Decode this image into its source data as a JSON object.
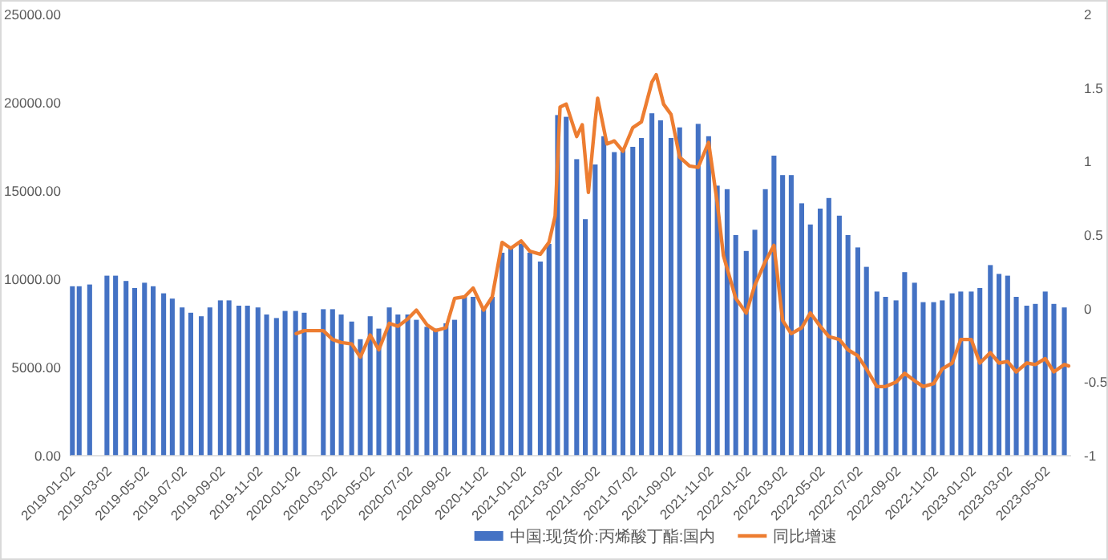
{
  "chart_data": {
    "type": "bar",
    "xlim": [
      "2019-01-01",
      "2023-06-12"
    ],
    "xticks": [
      "2019-01-02",
      "2019-03-02",
      "2019-05-02",
      "2019-07-02",
      "2019-09-02",
      "2019-11-02",
      "2020-01-02",
      "2020-03-02",
      "2020-05-02",
      "2020-07-02",
      "2020-09-02",
      "2020-11-02",
      "2021-01-02",
      "2021-03-02",
      "2021-05-02",
      "2021-07-02",
      "2021-09-02",
      "2021-11-02",
      "2022-01-02",
      "2022-03-02",
      "2022-05-02",
      "2022-07-02",
      "2022-09-02",
      "2022-11-02",
      "2023-01-02",
      "2023-03-02",
      "2023-05-02"
    ],
    "ylim": [
      0,
      25000
    ],
    "yticks": [
      {
        "value": 0,
        "label": "0.00"
      },
      {
        "value": 5000,
        "label": "5000.00"
      },
      {
        "value": 10000,
        "label": "10000.00"
      },
      {
        "value": 15000,
        "label": "15000.00"
      },
      {
        "value": 20000,
        "label": "20000.00"
      },
      {
        "value": 25000,
        "label": "25000.00"
      }
    ],
    "y2lim": [
      -1,
      2
    ],
    "y2ticks": [
      -1,
      -0.5,
      0,
      0.5,
      1,
      1.5,
      2
    ],
    "legend": "bottom",
    "series": [
      {
        "name": "中国:现货价:丙烯酸丁酯:国内",
        "color": "#4472c4",
        "x": [
          "2019-01-04",
          "2019-01-15",
          "2019-02-01",
          "2019-02-15",
          "2019-03-01",
          "2019-03-15",
          "2019-04-01",
          "2019-04-15",
          "2019-05-01",
          "2019-05-15",
          "2019-06-01",
          "2019-06-15",
          "2019-07-01",
          "2019-07-15",
          "2019-08-01",
          "2019-08-15",
          "2019-09-01",
          "2019-09-15",
          "2019-10-01",
          "2019-10-15",
          "2019-11-01",
          "2019-11-15",
          "2019-12-01",
          "2019-12-15",
          "2020-01-01",
          "2020-01-15",
          "2020-02-01",
          "2020-02-15",
          "2020-03-01",
          "2020-03-15",
          "2020-04-01",
          "2020-04-15",
          "2020-05-01",
          "2020-05-15",
          "2020-06-01",
          "2020-06-15",
          "2020-07-01",
          "2020-07-15",
          "2020-08-01",
          "2020-08-15",
          "2020-09-01",
          "2020-09-15",
          "2020-10-01",
          "2020-10-15",
          "2020-11-01",
          "2020-11-15",
          "2020-12-01",
          "2020-12-15",
          "2021-01-01",
          "2021-01-15",
          "2021-02-01",
          "2021-02-15",
          "2021-03-01",
          "2021-03-15",
          "2021-04-01",
          "2021-04-15",
          "2021-05-01",
          "2021-05-15",
          "2021-06-01",
          "2021-06-15",
          "2021-07-01",
          "2021-07-15",
          "2021-08-01",
          "2021-08-15",
          "2021-09-01",
          "2021-09-15",
          "2021-10-01",
          "2021-10-15",
          "2021-11-01",
          "2021-11-15",
          "2021-12-01",
          "2021-12-15",
          "2022-01-01",
          "2022-01-15",
          "2022-02-01",
          "2022-02-15",
          "2022-03-01",
          "2022-03-15",
          "2022-04-01",
          "2022-04-15",
          "2022-05-01",
          "2022-05-15",
          "2022-06-01",
          "2022-06-15",
          "2022-07-01",
          "2022-07-15",
          "2022-08-01",
          "2022-08-15",
          "2022-09-01",
          "2022-09-15",
          "2022-10-01",
          "2022-10-15",
          "2022-11-01",
          "2022-11-15",
          "2022-12-01",
          "2022-12-15",
          "2023-01-01",
          "2023-01-15",
          "2023-02-01",
          "2023-02-15",
          "2023-03-01",
          "2023-03-15",
          "2023-04-01",
          "2023-04-15",
          "2023-05-01",
          "2023-05-15",
          "2023-06-01"
        ],
        "values": [
          9600,
          9600,
          9700,
          null,
          10200,
          10200,
          9900,
          9500,
          9800,
          9600,
          9200,
          8900,
          8400,
          8100,
          7900,
          8400,
          8800,
          8800,
          8500,
          8500,
          8400,
          8000,
          7800,
          8200,
          8200,
          8100,
          null,
          8300,
          8300,
          8000,
          7600,
          6600,
          7900,
          7200,
          8400,
          8000,
          8000,
          7700,
          7300,
          7200,
          7500,
          7700,
          9000,
          9000,
          8300,
          9000,
          11500,
          11800,
          12000,
          11500,
          11000,
          12000,
          19300,
          19200,
          16800,
          13400,
          16500,
          18100,
          17200,
          17400,
          17500,
          18000,
          19400,
          19000,
          18000,
          18600,
          null,
          18800,
          18100,
          15300,
          15100,
          12500,
          11600,
          12800,
          15100,
          17000,
          15900,
          15900,
          14300,
          13100,
          14000,
          14600,
          13600,
          12500,
          11800,
          10700,
          9300,
          9000,
          8800,
          10400,
          9800,
          8700,
          8700,
          8800,
          9200,
          9300,
          9300,
          9500,
          10800,
          10300,
          10200,
          9000,
          8500,
          8600,
          9300,
          8600,
          8400
        ]
      },
      {
        "name": "同比增速",
        "type": "line",
        "axis": "y2",
        "color": "#ed7d31",
        "x": [
          "2020-01-02",
          "2020-01-15",
          "2020-02-15",
          "2020-03-01",
          "2020-03-15",
          "2020-04-01",
          "2020-04-15",
          "2020-05-01",
          "2020-05-15",
          "2020-06-01",
          "2020-06-15",
          "2020-07-01",
          "2020-07-15",
          "2020-08-01",
          "2020-08-15",
          "2020-09-01",
          "2020-09-15",
          "2020-10-01",
          "2020-10-15",
          "2020-11-01",
          "2020-11-15",
          "2020-12-01",
          "2020-12-15",
          "2021-01-01",
          "2021-01-15",
          "2021-02-01",
          "2021-02-15",
          "2021-02-25",
          "2021-03-05",
          "2021-03-15",
          "2021-04-01",
          "2021-04-10",
          "2021-04-20",
          "2021-05-01",
          "2021-05-05",
          "2021-05-20",
          "2021-06-01",
          "2021-06-15",
          "2021-07-01",
          "2021-07-15",
          "2021-08-01",
          "2021-08-08",
          "2021-08-20",
          "2021-09-01",
          "2021-09-15",
          "2021-10-01",
          "2021-10-15",
          "2021-11-01",
          "2021-11-15",
          "2021-11-25",
          "2021-12-15",
          "2022-01-01",
          "2022-01-15",
          "2022-02-01",
          "2022-02-15",
          "2022-03-01",
          "2022-03-15",
          "2022-04-01",
          "2022-04-15",
          "2022-05-01",
          "2022-05-15",
          "2022-06-01",
          "2022-06-15",
          "2022-07-01",
          "2022-07-15",
          "2022-08-01",
          "2022-08-15",
          "2022-09-01",
          "2022-09-15",
          "2022-10-01",
          "2022-10-15",
          "2022-11-01",
          "2022-11-15",
          "2022-12-01",
          "2022-12-15",
          "2023-01-01",
          "2023-01-15",
          "2023-02-01",
          "2023-02-15",
          "2023-03-01",
          "2023-03-15",
          "2023-04-01",
          "2023-04-15",
          "2023-05-01",
          "2023-05-15",
          "2023-06-01",
          "2023-06-08"
        ],
        "values": [
          -0.17,
          -0.15,
          -0.15,
          -0.21,
          -0.23,
          -0.24,
          -0.33,
          -0.18,
          -0.28,
          -0.1,
          -0.12,
          -0.07,
          -0.01,
          -0.11,
          -0.15,
          -0.13,
          0.07,
          0.08,
          0.14,
          -0.01,
          0.08,
          0.45,
          0.41,
          0.46,
          0.39,
          0.37,
          0.45,
          0.63,
          1.37,
          1.39,
          1.17,
          1.25,
          0.79,
          1.28,
          1.43,
          1.12,
          1.14,
          1.07,
          1.23,
          1.27,
          1.54,
          1.59,
          1.39,
          1.32,
          1.03,
          0.97,
          0.96,
          1.13,
          0.72,
          0.36,
          0.07,
          -0.03,
          0.16,
          0.32,
          0.43,
          -0.08,
          -0.17,
          -0.13,
          -0.03,
          -0.12,
          -0.19,
          -0.21,
          -0.28,
          -0.32,
          -0.41,
          -0.53,
          -0.53,
          -0.5,
          -0.44,
          -0.49,
          -0.53,
          -0.51,
          -0.41,
          -0.37,
          -0.21,
          -0.21,
          -0.37,
          -0.3,
          -0.37,
          -0.36,
          -0.43,
          -0.37,
          -0.38,
          -0.34,
          -0.43,
          -0.38,
          -0.39
        ]
      }
    ]
  }
}
